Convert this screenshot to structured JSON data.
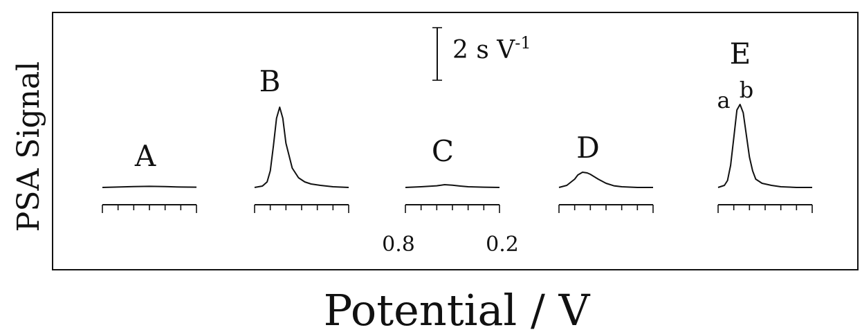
{
  "chart_data": {
    "type": "line",
    "ylabel": "PSA Signal",
    "xlabel": "Potential / V",
    "scale_bar_label": "2 s V",
    "scale_bar_unit_exp": "-1",
    "x_tick_labels": [
      "0.8",
      "0.2"
    ],
    "xlim": [
      0.8,
      0.2
    ],
    "peak_annotations": [
      "a",
      "b"
    ],
    "panels": [
      {
        "label": "A",
        "series": [
          {
            "x": [
              0.8,
              0.7,
              0.6,
              0.5,
              0.4,
              0.3,
              0.2
            ],
            "y": [
              0.0,
              0.03,
              0.06,
              0.08,
              0.06,
              0.03,
              0.02
            ]
          }
        ]
      },
      {
        "label": "B",
        "series": [
          {
            "x": [
              0.8,
              0.75,
              0.72,
              0.7,
              0.68,
              0.66,
              0.64,
              0.62,
              0.6,
              0.56,
              0.52,
              0.48,
              0.44,
              0.38,
              0.3,
              0.2
            ],
            "y": [
              0.0,
              0.1,
              0.4,
              1.2,
              3.0,
              5.0,
              5.8,
              5.0,
              3.2,
              1.4,
              0.7,
              0.4,
              0.25,
              0.15,
              0.05,
              0.0
            ]
          }
        ]
      },
      {
        "label": "C",
        "series": [
          {
            "x": [
              0.8,
              0.7,
              0.6,
              0.55,
              0.5,
              0.45,
              0.4,
              0.3,
              0.2
            ],
            "y": [
              0.0,
              0.05,
              0.12,
              0.2,
              0.16,
              0.1,
              0.05,
              0.02,
              0.0
            ]
          }
        ]
      },
      {
        "label": "D",
        "series": [
          {
            "x": [
              0.8,
              0.75,
              0.7,
              0.68,
              0.65,
              0.62,
              0.6,
              0.55,
              0.5,
              0.45,
              0.4,
              0.3,
              0.2
            ],
            "y": [
              0.0,
              0.15,
              0.6,
              0.9,
              1.1,
              1.05,
              0.95,
              0.6,
              0.3,
              0.12,
              0.05,
              0.0,
              0.0
            ]
          }
        ]
      },
      {
        "label": "E",
        "series": [
          {
            "x": [
              0.8,
              0.76,
              0.74,
              0.72,
              0.7,
              0.68,
              0.66,
              0.64,
              0.62,
              0.6,
              0.58,
              0.56,
              0.52,
              0.46,
              0.4,
              0.3,
              0.2
            ],
            "y": [
              0.0,
              0.15,
              0.5,
              1.6,
              3.6,
              5.6,
              6.0,
              5.4,
              3.8,
              2.2,
              1.2,
              0.6,
              0.3,
              0.15,
              0.05,
              0.0,
              0.0
            ]
          }
        ]
      }
    ]
  }
}
